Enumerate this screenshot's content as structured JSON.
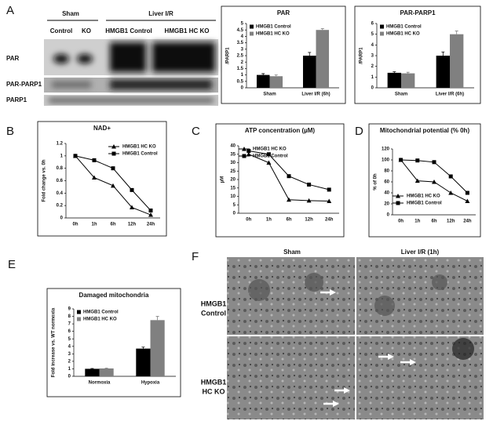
{
  "figure": {
    "panel_labels": [
      "A",
      "B",
      "C",
      "D",
      "E",
      "F"
    ],
    "blot": {
      "groups": [
        "Sham",
        "Liver I/R"
      ],
      "lanes": [
        "Control",
        "KO",
        "HMGB1 Control",
        "HMGB1 HC KO"
      ],
      "rows": [
        "PAR",
        "PAR-PARP1",
        "PARP1"
      ]
    },
    "micrographs": {
      "columns": [
        "Sham",
        "Liver I/R (1h)"
      ],
      "rows": [
        [
          "HMGB1",
          "Control"
        ],
        [
          "HMGB1",
          "HC KO"
        ]
      ]
    }
  },
  "chart_data": [
    {
      "type": "bar",
      "title": "PAR",
      "y_label": "/PARP1",
      "categories": [
        "Sham",
        "Liver I/R (6h)"
      ],
      "series": [
        {
          "name": "HMGB1 Control",
          "color": "#000000",
          "values": [
            1.0,
            2.5
          ],
          "errors": [
            0.1,
            0.25
          ]
        },
        {
          "name": "HMGB1 HC KO",
          "color": "#808080",
          "values": [
            0.9,
            4.5
          ],
          "errors": [
            0.1,
            0.1
          ]
        }
      ],
      "ylim": [
        0,
        5
      ],
      "yticks": [
        0,
        0.5,
        1,
        1.5,
        2,
        2.5,
        3,
        3.5,
        4,
        4.5,
        5
      ],
      "legend": "upper left"
    },
    {
      "type": "bar",
      "title": "PAR-PARP1",
      "y_label": "/PARP1",
      "categories": [
        "Sham",
        "Liver I/R (6h)"
      ],
      "series": [
        {
          "name": "HMGB1 Control",
          "color": "#000000",
          "values": [
            1.4,
            3.0
          ],
          "errors": [
            0.1,
            0.35
          ]
        },
        {
          "name": "HMGB1 HC KO",
          "color": "#808080",
          "values": [
            1.35,
            5.0
          ],
          "errors": [
            0.1,
            0.3
          ]
        }
      ],
      "ylim": [
        0,
        6
      ],
      "yticks": [
        0,
        1,
        2,
        3,
        4,
        5,
        6
      ],
      "legend": "upper left"
    },
    {
      "type": "line",
      "title": "NAD+",
      "y_label": "Fold change vs. 0h",
      "categories": [
        "0h",
        "1h",
        "6h",
        "12h",
        "24h"
      ],
      "series": [
        {
          "name": "HMGB1 HC KO",
          "color": "#000000",
          "marker": "triangle",
          "values": [
            1.0,
            0.65,
            0.52,
            0.17,
            0.05
          ]
        },
        {
          "name": "HMGB1 Control",
          "color": "#000000",
          "marker": "square",
          "values": [
            1.0,
            0.93,
            0.8,
            0.45,
            0.12
          ]
        }
      ],
      "ylim": [
        0,
        1.2
      ],
      "yticks": [
        0,
        0.2,
        0.4,
        0.6,
        0.8,
        1,
        1.2
      ],
      "legend": "upper right"
    },
    {
      "type": "line",
      "title": "ATP concentration (µM)",
      "y_label": "µM",
      "categories": [
        "0h",
        "1h",
        "6h",
        "12h",
        "24h"
      ],
      "series": [
        {
          "name": "HMGB1 HC KO",
          "color": "#000000",
          "marker": "triangle",
          "values": [
            35,
            30,
            8,
            7.5,
            7.2
          ]
        },
        {
          "name": "HMGB1 Control",
          "color": "#000000",
          "marker": "square",
          "values": [
            37,
            35,
            22,
            17,
            14
          ]
        }
      ],
      "ylim": [
        0,
        40
      ],
      "yticks": [
        0,
        5,
        10,
        15,
        20,
        25,
        30,
        35,
        40
      ],
      "legend": "upper left"
    },
    {
      "type": "line",
      "title": "Mitochondrial potential (% 0h)",
      "y_label": "% of 0h",
      "categories": [
        "0h",
        "1h",
        "6h",
        "12h",
        "24h"
      ],
      "series": [
        {
          "name": "HMGB1 HC KO",
          "color": "#000000",
          "marker": "triangle",
          "values": [
            100,
            62,
            60,
            40,
            25
          ]
        },
        {
          "name": "HMGB1 Control",
          "color": "#000000",
          "marker": "square",
          "values": [
            100,
            99,
            96,
            70,
            40
          ]
        }
      ],
      "ylim": [
        0,
        120
      ],
      "yticks": [
        0,
        20,
        40,
        60,
        80,
        100,
        120
      ],
      "legend": "lower left"
    },
    {
      "type": "bar",
      "title": "Damaged mitochondria",
      "y_label": "Fold increase vs. WT normoxia",
      "categories": [
        "Normoxia",
        "Hypoxia"
      ],
      "series": [
        {
          "name": "HMGB1 Control",
          "color": "#000000",
          "values": [
            1.0,
            3.7
          ],
          "errors": [
            0.05,
            0.2
          ]
        },
        {
          "name": "HMGB1 HC KO",
          "color": "#808080",
          "values": [
            1.05,
            7.5
          ],
          "errors": [
            0.05,
            0.5
          ]
        }
      ],
      "ylim": [
        0,
        9
      ],
      "yticks": [
        0,
        1,
        2,
        3,
        4,
        5,
        6,
        7,
        8,
        9
      ],
      "legend": "upper left"
    }
  ]
}
